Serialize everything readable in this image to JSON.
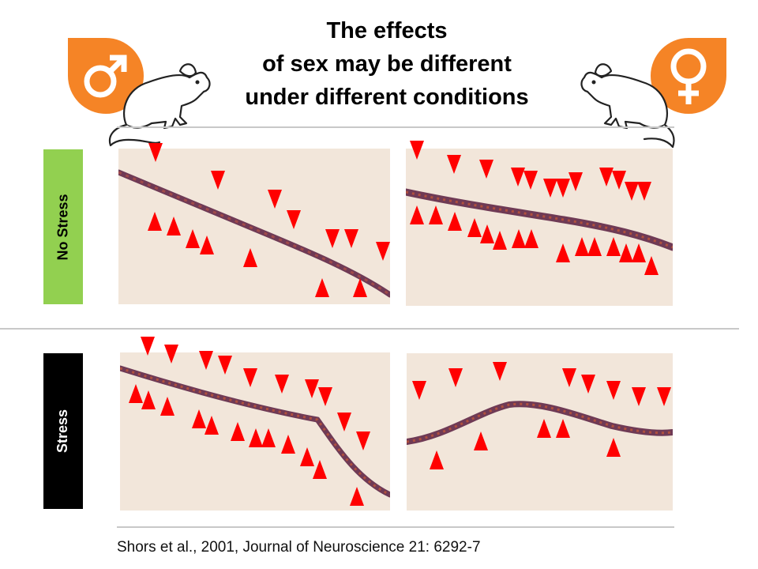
{
  "title": {
    "line1": "The effects",
    "line2": "of sex may be different",
    "line3": "under different conditions"
  },
  "icons": {
    "male": "male-symbol-icon",
    "female": "female-symbol-icon",
    "mouse": "mouse-icon",
    "marker": "red-arrowhead-marker"
  },
  "colors": {
    "badge": "#f58426",
    "no_stress_label": "#92d050",
    "stress_label": "#000000",
    "marker": "#ff0000",
    "dendrite": "#7a3a52",
    "panel_bg": "#f2e6da"
  },
  "rows": {
    "no_stress": {
      "label": "No Stress"
    },
    "stress": {
      "label": "Stress"
    }
  },
  "citation": "Shors et al., 2001, Journal of Neuroscience 21: 6292-7"
}
